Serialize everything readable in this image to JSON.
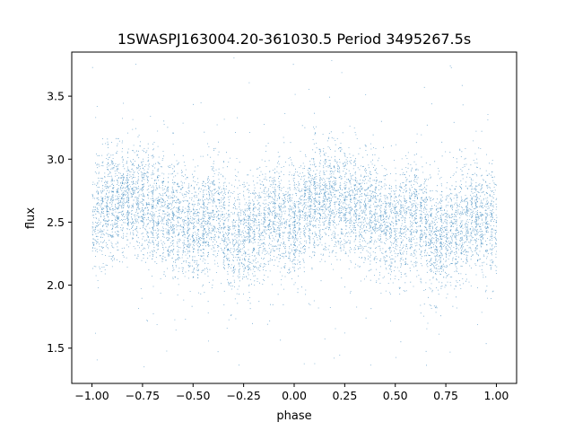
{
  "chart_data": {
    "type": "scatter",
    "title": "1SWASPJ163004.20-361030.5 Period 3495267.5s",
    "xlabel": "phase",
    "ylabel": "flux",
    "xlim": [
      -1.1,
      1.1
    ],
    "ylim": [
      1.22,
      3.85
    ],
    "xticks": [
      -1.0,
      -0.75,
      -0.5,
      -0.25,
      0.0,
      0.25,
      0.5,
      0.75,
      1.0
    ],
    "xtick_labels": [
      "−1.00",
      "−0.75",
      "−0.50",
      "−0.25",
      "0.00",
      "0.25",
      "0.50",
      "0.75",
      "1.00"
    ],
    "yticks": [
      1.5,
      2.0,
      2.5,
      3.0,
      3.5
    ],
    "ytick_labels": [
      "1.5",
      "2.0",
      "2.5",
      "3.0",
      "3.5"
    ],
    "grid": false,
    "marker_color": "#1f77b4",
    "series": [
      {
        "profile_phase": [
          -1.0,
          -0.9,
          -0.8,
          -0.7,
          -0.6,
          -0.5,
          -0.4,
          -0.3,
          -0.2,
          -0.1,
          0.0,
          0.1,
          0.2,
          0.3,
          0.4,
          0.5,
          0.6,
          0.7,
          0.8,
          0.9,
          1.0
        ],
        "profile_flux": [
          2.5,
          2.68,
          2.7,
          2.6,
          2.55,
          2.45,
          2.58,
          2.35,
          2.45,
          2.55,
          2.5,
          2.68,
          2.7,
          2.6,
          2.55,
          2.45,
          2.58,
          2.35,
          2.45,
          2.55,
          2.5
        ],
        "scatter_sigma": 0.22,
        "outlier_min": 1.33,
        "outlier_max": 3.82
      }
    ]
  }
}
